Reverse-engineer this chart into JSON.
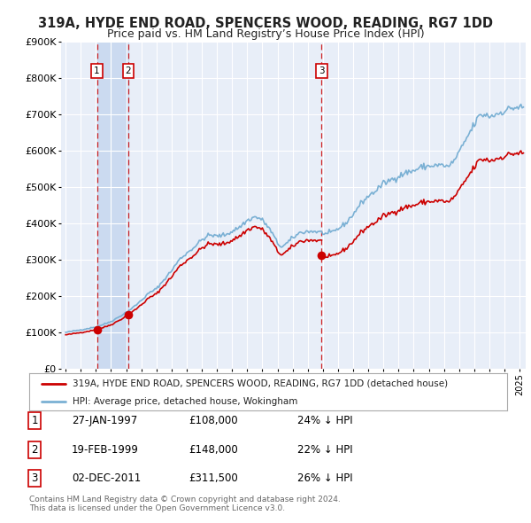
{
  "title": "319A, HYDE END ROAD, SPENCERS WOOD, READING, RG7 1DD",
  "subtitle": "Price paid vs. HM Land Registry’s House Price Index (HPI)",
  "ylim": [
    0,
    900000
  ],
  "xlim": [
    1994.7,
    2025.4
  ],
  "ytick_labels": [
    "£0",
    "£100K",
    "£200K",
    "£300K",
    "£400K",
    "£500K",
    "£600K",
    "£700K",
    "£800K",
    "£900K"
  ],
  "ytick_values": [
    0,
    100000,
    200000,
    300000,
    400000,
    500000,
    600000,
    700000,
    800000,
    900000
  ],
  "background_color": "#e8eef8",
  "grid_color": "#ffffff",
  "sale_color": "#cc0000",
  "hpi_color": "#7ab0d4",
  "shade_color": "#c8d8f0",
  "transactions": [
    {
      "year": 1997.07,
      "price": 108000,
      "label": "1"
    },
    {
      "year": 1999.13,
      "price": 148000,
      "label": "2"
    },
    {
      "year": 2011.92,
      "price": 311500,
      "label": "3"
    }
  ],
  "legend_sale_label": "319A, HYDE END ROAD, SPENCERS WOOD, READING, RG7 1DD (detached house)",
  "legend_hpi_label": "HPI: Average price, detached house, Wokingham",
  "table_rows": [
    {
      "label": "1",
      "date": "27-JAN-1997",
      "price": "£108,000",
      "pct": "24% ↓ HPI"
    },
    {
      "label": "2",
      "date": "19-FEB-1999",
      "price": "£148,000",
      "pct": "22% ↓ HPI"
    },
    {
      "label": "3",
      "date": "02-DEC-2011",
      "price": "£311,500",
      "pct": "26% ↓ HPI"
    }
  ],
  "footer1": "Contains HM Land Registry data © Crown copyright and database right 2024.",
  "footer2": "This data is licensed under the Open Government Licence v3.0."
}
